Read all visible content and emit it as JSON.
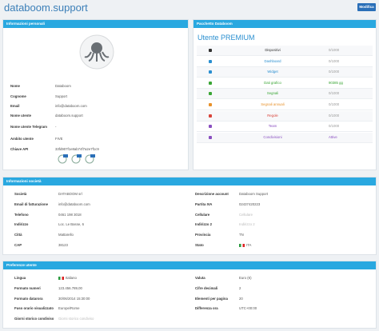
{
  "header": {
    "title": "databoom.support",
    "button": "Modifica"
  },
  "personal": {
    "title": "Informazioni personali",
    "fields": [
      {
        "label": "Nome",
        "value": "Databoom"
      },
      {
        "label": "Cognome",
        "value": "Support"
      },
      {
        "label": "Email",
        "value": "info@databoom.com"
      },
      {
        "label": "Nome utente",
        "value": "databoom.support"
      },
      {
        "label": "Nome utente Telegram",
        "value": "-"
      },
      {
        "label": "Ambito utente",
        "value": "FIVE"
      },
      {
        "label": "Chiave API",
        "value": "33fd907f1e8ab74f7a2e7f1c9"
      }
    ]
  },
  "plan": {
    "title": "Pacchetto Databoom",
    "subtitle": "Utente PREMIUM",
    "rows": [
      {
        "label": "Dispositivi",
        "value": "0/1000",
        "color": "#333333"
      },
      {
        "label": "Dashboard",
        "value": "0/1000",
        "color": "#2a8fd0"
      },
      {
        "label": "Widget",
        "value": "0/1000",
        "color": "#2a8fd0"
      },
      {
        "label": "Dati grafico",
        "value": "90385 gg",
        "color": "#3aa635"
      },
      {
        "label": "Segnali",
        "value": "0/1000",
        "color": "#3aa635"
      },
      {
        "label": "Segnali annuali",
        "value": "0/1000",
        "color": "#e8912a"
      },
      {
        "label": "Regole",
        "value": "0/1000",
        "color": "#d9443a"
      },
      {
        "label": "Team",
        "value": "0/1000",
        "color": "#8a4fc0"
      },
      {
        "label": "Condivisioni",
        "value": "Attive",
        "color": "#8a4fc0"
      }
    ]
  },
  "company": {
    "title": "Informazioni società",
    "left": [
      {
        "label": "Società",
        "value": "DATABOOM srl"
      },
      {
        "label": "Email di fatturazione",
        "value": "info@databoom.com"
      },
      {
        "label": "Telefono",
        "value": "0461 198 3018"
      },
      {
        "label": "Indirizzo",
        "value": "Loc. Le Basse, 6"
      },
      {
        "label": "Città",
        "value": "Mattarello"
      },
      {
        "label": "CAP",
        "value": "38123"
      }
    ],
    "right": [
      {
        "label": "Descrizione account",
        "value": "Databoom Support"
      },
      {
        "label": "Partita IVA",
        "value": "02437420223"
      },
      {
        "label": "Cellulare",
        "value": "Cellulare"
      },
      {
        "label": "Indirizzo 2",
        "value": "Indirizzo 2"
      },
      {
        "label": "Provincia",
        "value": "TN"
      },
      {
        "label": "Stato",
        "value": "ITA"
      }
    ]
  },
  "preferences": {
    "title": "Preferenze utente",
    "left": [
      {
        "label": "Lingua",
        "value": "Italiano"
      },
      {
        "label": "Formato numeri",
        "value": "123.456.789,00"
      },
      {
        "label": "Formato datarora",
        "value": "30/06/2014 15:30:00"
      },
      {
        "label": "Fuso orario visualizzato",
        "value": "Europe/Rome"
      },
      {
        "label": "Giorni storico condiviso",
        "value": "Giorni storico condiviso"
      }
    ],
    "right": [
      {
        "label": "Valuta",
        "value": "Euro (€)"
      },
      {
        "label": "Cifre decimali",
        "value": "2"
      },
      {
        "label": "Elementi per pagina",
        "value": "20"
      },
      {
        "label": "Differenza ora",
        "value": "UTC+00:00"
      }
    ]
  }
}
